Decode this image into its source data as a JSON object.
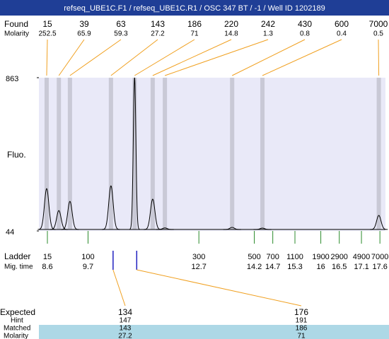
{
  "chart_data": {
    "type": "electropherogram",
    "title": "refseq_UBE1C.F1 / refseq_UBE1C.R1 / OSC 347 BT / -1 / Well ID 1202189",
    "found_label": "Found",
    "molarity_label": "Molarity",
    "ylabel": "Fluo.",
    "ylim": [
      44,
      863
    ],
    "yticks": [
      44,
      863
    ],
    "xlim": [
      8.37,
      17.75
    ],
    "baseline": 52,
    "peaks": {
      "size": [
        15,
        39,
        63,
        143,
        186,
        220,
        242,
        430,
        600,
        7000
      ],
      "molarity": [
        252.5,
        65.9,
        59.3,
        27.2,
        71,
        14.8,
        1.3,
        0.8,
        0.4,
        0.5
      ],
      "mig_time": [
        8.58,
        8.91,
        9.21,
        10.32,
        10.96,
        11.45,
        11.78,
        13.6,
        14.42,
        17.57
      ],
      "height": [
        270,
        153,
        202,
        285,
        863,
        214,
        60,
        63,
        59,
        127
      ]
    },
    "ladder_label": "Ladder",
    "migtime_label": "Mig. time",
    "ladder": {
      "size": [
        15,
        100,
        300,
        500,
        700,
        1100,
        1900,
        2900,
        4900,
        7000
      ],
      "mig_time": [
        8.6,
        9.7,
        12.7,
        14.2,
        14.7,
        15.3,
        16,
        16.5,
        17.1,
        17.6
      ]
    },
    "expected_label": "Expected",
    "hint_label": "Hint",
    "matched_label": "Matched",
    "expected_molarity_label": "Molarity",
    "expected": [
      {
        "expected": 134,
        "hint": 147,
        "matched": 143,
        "molarity": 27.2
      },
      {
        "expected": 176,
        "hint": 191,
        "matched": 186,
        "molarity": 71
      }
    ]
  }
}
